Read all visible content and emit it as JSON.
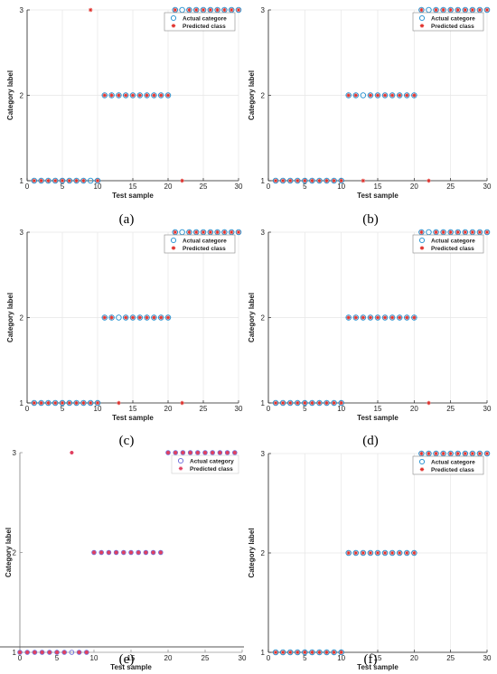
{
  "figure": {
    "panels": [
      {
        "label": "(a)",
        "legend": [
          "Actual categore",
          "Predicted class"
        ],
        "xlabel": "Test sample",
        "ylabel": "Category label"
      },
      {
        "label": "(b)",
        "legend": [
          "Actual categore",
          "Predicted class"
        ],
        "xlabel": "Test sample",
        "ylabel": "Category label"
      },
      {
        "label": "(c)",
        "legend": [
          "Actual categore",
          "Predicted class"
        ],
        "xlabel": "Test sample",
        "ylabel": "Category label"
      },
      {
        "label": "(d)",
        "legend": [
          "Actual categore",
          "Predicted class"
        ],
        "xlabel": "Test sample",
        "ylabel": "Category label"
      },
      {
        "label": "(e)",
        "legend": [
          "Actual category",
          "Predicted class"
        ],
        "xlabel": "Test sample",
        "ylabel": "Category label"
      },
      {
        "label": "(f)",
        "legend": [
          "Actual categore",
          "Predicted class"
        ],
        "xlabel": "Test sample",
        "ylabel": "Category label"
      }
    ]
  },
  "chart_data": [
    {
      "type": "scatter",
      "title": "",
      "xlabel": "Test sample",
      "ylabel": "Category label",
      "xlim": [
        0,
        30
      ],
      "ylim": [
        1,
        3
      ],
      "xticks": [
        0,
        5,
        10,
        15,
        20,
        25,
        30
      ],
      "yticks": [
        1,
        2,
        3
      ],
      "grid": true,
      "legend_position": "top-right",
      "x": [
        1,
        2,
        3,
        4,
        5,
        6,
        7,
        8,
        9,
        10,
        11,
        12,
        13,
        14,
        15,
        16,
        17,
        18,
        19,
        20,
        21,
        22,
        23,
        24,
        25,
        26,
        27,
        28,
        29,
        30
      ],
      "series": [
        {
          "name": "Actual categore",
          "marker": "circle",
          "color": "#1f8fd0",
          "values": [
            1,
            1,
            1,
            1,
            1,
            1,
            1,
            1,
            1,
            1,
            2,
            2,
            2,
            2,
            2,
            2,
            2,
            2,
            2,
            2,
            3,
            3,
            3,
            3,
            3,
            3,
            3,
            3,
            3,
            3
          ]
        },
        {
          "name": "Predicted class",
          "marker": "star",
          "color": "#e0302b",
          "values": [
            1,
            1,
            1,
            1,
            1,
            1,
            1,
            1,
            3,
            1,
            2,
            2,
            2,
            2,
            2,
            2,
            2,
            2,
            2,
            2,
            3,
            1,
            3,
            3,
            3,
            3,
            3,
            3,
            3,
            3
          ]
        }
      ]
    },
    {
      "type": "scatter",
      "title": "",
      "xlabel": "Test sample",
      "ylabel": "Category label",
      "xlim": [
        0,
        30
      ],
      "ylim": [
        1,
        3
      ],
      "xticks": [
        0,
        5,
        10,
        15,
        20,
        25,
        30
      ],
      "yticks": [
        1,
        2,
        3
      ],
      "grid": true,
      "legend_position": "top-right",
      "x": [
        1,
        2,
        3,
        4,
        5,
        6,
        7,
        8,
        9,
        10,
        11,
        12,
        13,
        14,
        15,
        16,
        17,
        18,
        19,
        20,
        21,
        22,
        23,
        24,
        25,
        26,
        27,
        28,
        29,
        30
      ],
      "series": [
        {
          "name": "Actual categore",
          "marker": "circle",
          "color": "#1f8fd0",
          "values": [
            1,
            1,
            1,
            1,
            1,
            1,
            1,
            1,
            1,
            1,
            2,
            2,
            2,
            2,
            2,
            2,
            2,
            2,
            2,
            2,
            3,
            3,
            3,
            3,
            3,
            3,
            3,
            3,
            3,
            3
          ]
        },
        {
          "name": "Predicted class",
          "marker": "star",
          "color": "#e0302b",
          "values": [
            1,
            1,
            1,
            1,
            1,
            1,
            1,
            1,
            1,
            1,
            2,
            2,
            1,
            2,
            2,
            2,
            2,
            2,
            2,
            2,
            3,
            1,
            3,
            3,
            3,
            3,
            3,
            3,
            3,
            3
          ]
        }
      ]
    },
    {
      "type": "scatter",
      "title": "",
      "xlabel": "Test sample",
      "ylabel": "Category label",
      "xlim": [
        0,
        30
      ],
      "ylim": [
        1,
        3
      ],
      "xticks": [
        0,
        5,
        10,
        15,
        20,
        25,
        30
      ],
      "yticks": [
        1,
        2,
        3
      ],
      "grid": true,
      "legend_position": "top-right",
      "x": [
        1,
        2,
        3,
        4,
        5,
        6,
        7,
        8,
        9,
        10,
        11,
        12,
        13,
        14,
        15,
        16,
        17,
        18,
        19,
        20,
        21,
        22,
        23,
        24,
        25,
        26,
        27,
        28,
        29,
        30
      ],
      "series": [
        {
          "name": "Actual categore",
          "marker": "circle",
          "color": "#1f8fd0",
          "values": [
            1,
            1,
            1,
            1,
            1,
            1,
            1,
            1,
            1,
            1,
            2,
            2,
            2,
            2,
            2,
            2,
            2,
            2,
            2,
            2,
            3,
            3,
            3,
            3,
            3,
            3,
            3,
            3,
            3,
            3
          ]
        },
        {
          "name": "Predicted class",
          "marker": "star",
          "color": "#e0302b",
          "values": [
            1,
            1,
            1,
            1,
            1,
            1,
            1,
            1,
            1,
            1,
            2,
            2,
            1,
            2,
            2,
            2,
            2,
            2,
            2,
            2,
            3,
            1,
            3,
            3,
            3,
            3,
            3,
            3,
            3,
            3
          ]
        }
      ]
    },
    {
      "type": "scatter",
      "title": "",
      "xlabel": "Test sample",
      "ylabel": "Category label",
      "xlim": [
        0,
        30
      ],
      "ylim": [
        1,
        3
      ],
      "xticks": [
        0,
        5,
        10,
        15,
        20,
        25,
        30
      ],
      "yticks": [
        1,
        2,
        3
      ],
      "grid": true,
      "legend_position": "top-right",
      "x": [
        1,
        2,
        3,
        4,
        5,
        6,
        7,
        8,
        9,
        10,
        11,
        12,
        13,
        14,
        15,
        16,
        17,
        18,
        19,
        20,
        21,
        22,
        23,
        24,
        25,
        26,
        27,
        28,
        29,
        30
      ],
      "series": [
        {
          "name": "Actual categore",
          "marker": "circle",
          "color": "#1f8fd0",
          "values": [
            1,
            1,
            1,
            1,
            1,
            1,
            1,
            1,
            1,
            1,
            2,
            2,
            2,
            2,
            2,
            2,
            2,
            2,
            2,
            2,
            3,
            3,
            3,
            3,
            3,
            3,
            3,
            3,
            3,
            3
          ]
        },
        {
          "name": "Predicted class",
          "marker": "star",
          "color": "#e0302b",
          "values": [
            1,
            1,
            1,
            1,
            1,
            1,
            1,
            1,
            1,
            1,
            2,
            2,
            2,
            2,
            2,
            2,
            2,
            2,
            2,
            2,
            3,
            1,
            3,
            3,
            3,
            3,
            3,
            3,
            3,
            3
          ]
        }
      ]
    },
    {
      "type": "scatter",
      "title": "",
      "xlabel": "Test sample",
      "ylabel": "Category label",
      "xlim": [
        0,
        30
      ],
      "ylim": [
        1,
        3
      ],
      "xticks": [
        0,
        5,
        10,
        15,
        20,
        25,
        30
      ],
      "yticks": [
        1,
        2,
        3
      ],
      "grid": false,
      "legend_position": "top-right",
      "x": [
        0,
        1,
        2,
        3,
        4,
        5,
        6,
        7,
        8,
        9,
        10,
        11,
        12,
        13,
        14,
        15,
        16,
        17,
        18,
        19,
        20,
        21,
        22,
        23,
        24,
        25,
        26,
        27,
        28,
        29
      ],
      "series": [
        {
          "name": "Actual category",
          "marker": "circle",
          "color": "#6a6ad8",
          "values": [
            1,
            1,
            1,
            1,
            1,
            1,
            1,
            1,
            1,
            1,
            2,
            2,
            2,
            2,
            2,
            2,
            2,
            2,
            2,
            2,
            3,
            3,
            3,
            3,
            3,
            3,
            3,
            3,
            3,
            3
          ]
        },
        {
          "name": "Predicted class",
          "marker": "star",
          "color": "#e04060",
          "values": [
            1,
            1,
            1,
            1,
            1,
            1,
            1,
            3,
            1,
            1,
            2,
            2,
            2,
            2,
            2,
            2,
            2,
            2,
            2,
            2,
            3,
            3,
            3,
            3,
            3,
            3,
            3,
            3,
            3,
            3
          ]
        }
      ]
    },
    {
      "type": "scatter",
      "title": "",
      "xlabel": "Test sample",
      "ylabel": "Category label",
      "xlim": [
        0,
        30
      ],
      "ylim": [
        1,
        3
      ],
      "xticks": [
        0,
        5,
        10,
        15,
        20,
        25,
        30
      ],
      "yticks": [
        1,
        2,
        3
      ],
      "grid": true,
      "legend_position": "top-right",
      "x": [
        1,
        2,
        3,
        4,
        5,
        6,
        7,
        8,
        9,
        10,
        11,
        12,
        13,
        14,
        15,
        16,
        17,
        18,
        19,
        20,
        21,
        22,
        23,
        24,
        25,
        26,
        27,
        28,
        29,
        30
      ],
      "series": [
        {
          "name": "Actual categore",
          "marker": "circle",
          "color": "#1f8fd0",
          "values": [
            1,
            1,
            1,
            1,
            1,
            1,
            1,
            1,
            1,
            1,
            2,
            2,
            2,
            2,
            2,
            2,
            2,
            2,
            2,
            2,
            3,
            3,
            3,
            3,
            3,
            3,
            3,
            3,
            3,
            3
          ]
        },
        {
          "name": "Predicted class",
          "marker": "star",
          "color": "#e0302b",
          "values": [
            1,
            1,
            1,
            1,
            1,
            1,
            1,
            1,
            1,
            1,
            2,
            2,
            2,
            2,
            2,
            2,
            2,
            2,
            2,
            2,
            3,
            3,
            3,
            3,
            3,
            3,
            3,
            3,
            3,
            3
          ]
        }
      ]
    }
  ]
}
